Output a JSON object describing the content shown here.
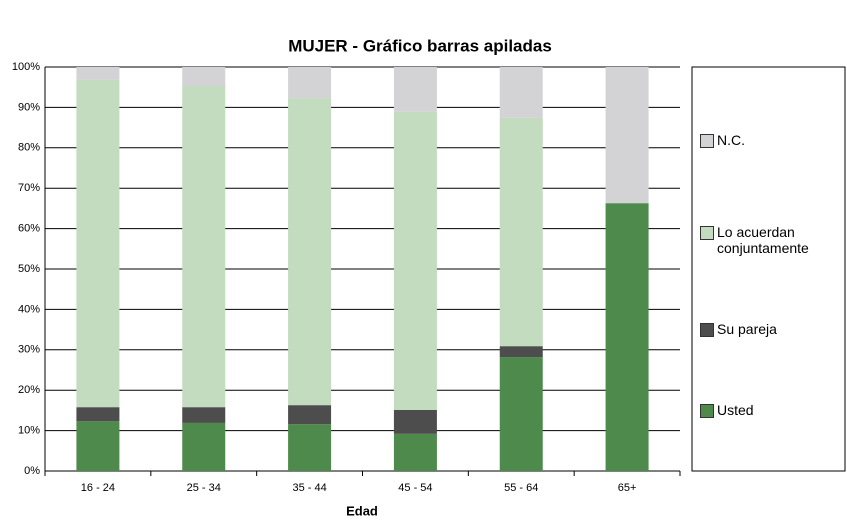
{
  "chart_data": {
    "type": "stacked_bar",
    "title": "MUJER - Gráfico barras apiladas",
    "x_label": "Edad",
    "categories": [
      "16 - 24",
      "25 - 34",
      "35 - 44",
      "45 - 54",
      "55 - 64",
      "65+"
    ],
    "series": [
      {
        "name": "Usted",
        "color": "#4e8a4b",
        "values": [
          12.3,
          11.9,
          11.6,
          9.2,
          28.2,
          66.3
        ]
      },
      {
        "name": "Su pareja",
        "color": "#4d4d4d",
        "values": [
          3.5,
          3.9,
          4.7,
          5.9,
          2.7,
          0
        ]
      },
      {
        "name": "Lo acuerdan conjuntamente",
        "color": "#c3dbbf",
        "values": [
          81.0,
          79.5,
          76.0,
          73.8,
          56.5,
          0
        ]
      },
      {
        "name": "N.C.",
        "color": "#d3d3d5",
        "values": [
          3.2,
          4.7,
          7.7,
          11.1,
          12.6,
          33.7
        ]
      }
    ],
    "ylim": [
      0,
      100
    ],
    "yticks": [
      {
        "value": 0,
        "label": "0%"
      },
      {
        "value": 10,
        "label": "10%"
      },
      {
        "value": 20,
        "label": "20%"
      },
      {
        "value": 30,
        "label": "30%"
      },
      {
        "value": 40,
        "label": "40%"
      },
      {
        "value": 50,
        "label": "50%"
      },
      {
        "value": 60,
        "label": "60%"
      },
      {
        "value": 70,
        "label": "70%"
      },
      {
        "value": 80,
        "label": "80%"
      },
      {
        "value": 90,
        "label": "90%"
      },
      {
        "value": 100,
        "label": "100%"
      }
    ],
    "grid": true
  }
}
